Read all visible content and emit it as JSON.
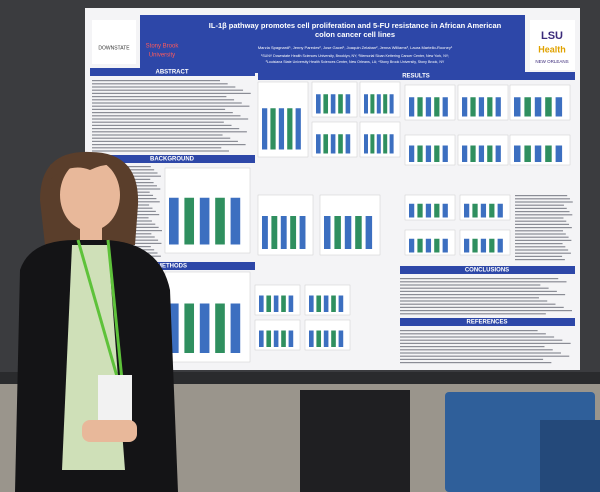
{
  "poster": {
    "title_lines": [
      "IL-1β pathway promotes cell proliferation and 5-FU resistance in African American",
      "colon cancer cell lines"
    ],
    "authors": "Marzia Spagnardi¹, Jenny Paredes², Jose Gacel¹, Joaquin Zelaban², Jenna Williams³, Laura Martello-Rooney¹",
    "affiliations": [
      "¹SUNY Downstate Health Sciences University, Brooklyn, NY; ²Memorial Sloan Kettering Cancer Center, New York, NY;",
      "³Louisiana State University Health Sciences Center, New Orleans, LA; ⁴Stony Brook University, Stony Brook, NY"
    ],
    "logos": {
      "left": "DOWNSTATE",
      "middle": [
        "Stony Brook",
        "University"
      ],
      "right": [
        "LSU",
        "Health",
        "NEW ORLEANS"
      ]
    },
    "sections": {
      "abstract": "ABSTRACT",
      "results": "RESULTS",
      "background": "BACKGROUND",
      "methods": "METHODS",
      "conclusions": "CONCLUSIONS",
      "references": "REFERENCES"
    }
  }
}
